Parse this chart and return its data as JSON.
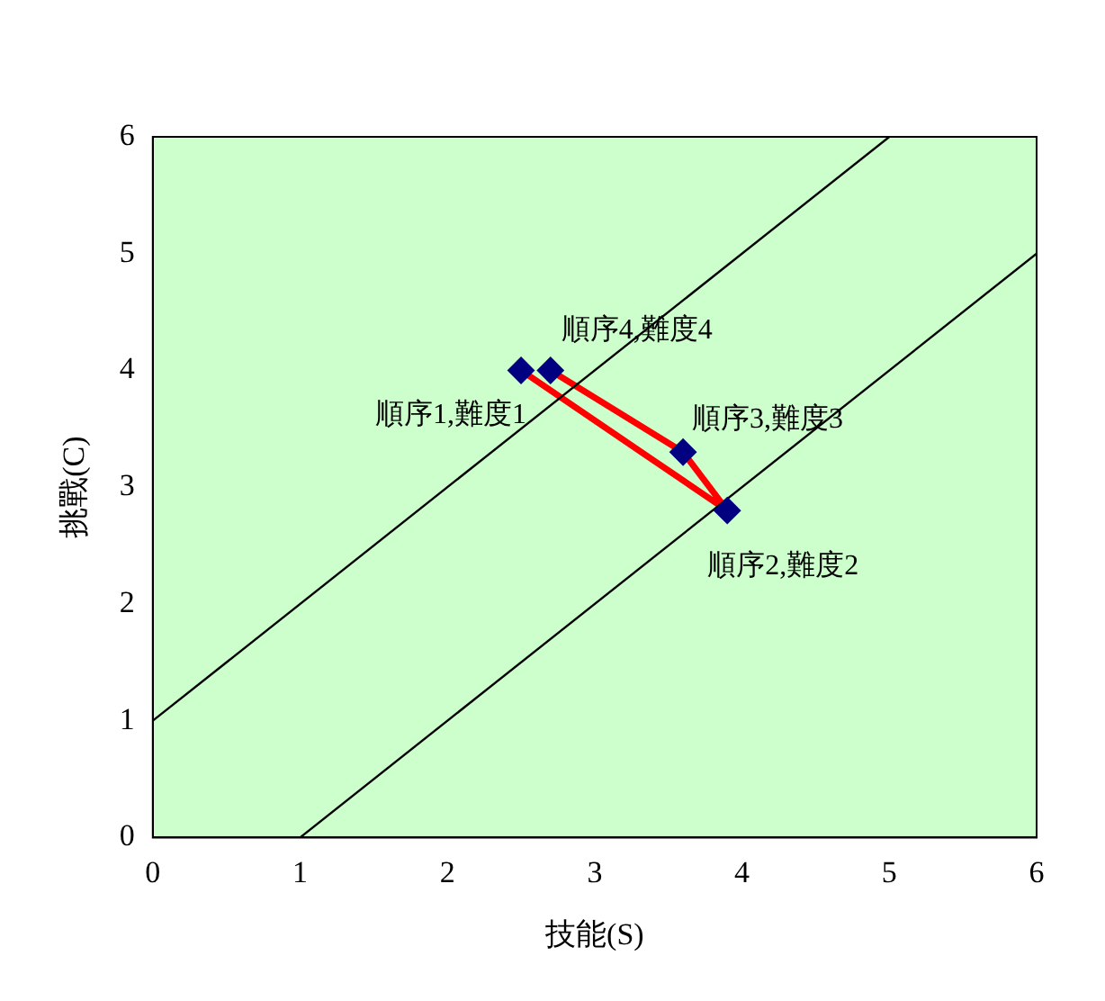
{
  "chart_data": {
    "type": "scatter",
    "xlabel": "技能(S)",
    "ylabel": "挑戰(C)",
    "xlim": [
      0,
      6
    ],
    "ylim": [
      0,
      6
    ],
    "xticks": [
      0,
      1,
      2,
      3,
      4,
      5,
      6
    ],
    "yticks": [
      0,
      1,
      2,
      3,
      4,
      5,
      6
    ],
    "grid": false,
    "legend": false,
    "series": [
      {
        "type": "line",
        "color": "#000000",
        "x": [
          0,
          5
        ],
        "values": [
          1,
          6
        ],
        "marker": "none"
      },
      {
        "type": "line",
        "color": "#000000",
        "x": [
          1,
          6
        ],
        "values": [
          0,
          5
        ],
        "marker": "none"
      },
      {
        "type": "line",
        "color": "#ff0000",
        "x": [
          2.5,
          3.9,
          3.6,
          2.7
        ],
        "values": [
          4.0,
          2.8,
          3.3,
          4.0
        ],
        "marker": "none"
      },
      {
        "type": "scatter",
        "color": "#000080",
        "x": [
          2.5,
          3.9,
          3.6,
          2.7
        ],
        "values": [
          4.0,
          2.8,
          3.3,
          4.0
        ],
        "marker": "diamond"
      }
    ],
    "annotations": [
      {
        "text": "順序1,難度1",
        "x": 2.5,
        "y": 4.0
      },
      {
        "text": "順序2,難度2",
        "x": 3.9,
        "y": 2.8
      },
      {
        "text": "順序3,難度3",
        "x": 3.6,
        "y": 3.3
      },
      {
        "text": "順序4,難度4",
        "x": 2.7,
        "y": 4.0
      }
    ]
  }
}
